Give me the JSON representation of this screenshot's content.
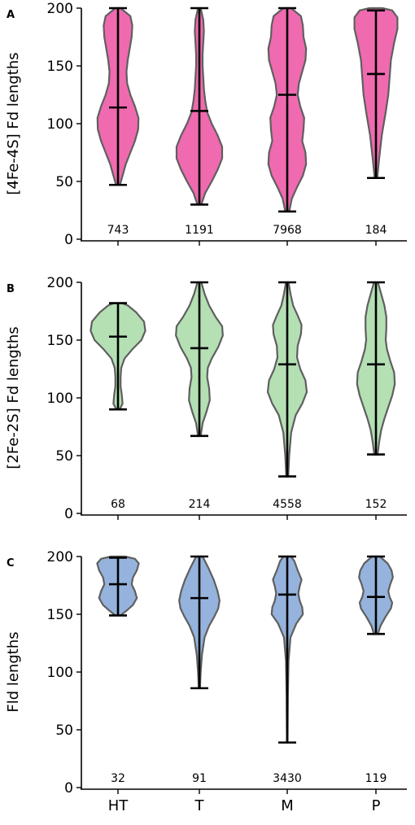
{
  "chart_data": [
    {
      "type": "violin",
      "panel_label": "A",
      "ylabel": "[4Fe-4S] Fd lengths",
      "ylim": [
        0,
        200
      ],
      "yticks": [
        0,
        50,
        100,
        150,
        200
      ],
      "categories": [
        "HT",
        "T",
        "M",
        "P"
      ],
      "color": "#f06ab0",
      "violins": [
        {
          "category": "HT",
          "min": 47,
          "median": 114,
          "max": 200,
          "count": "743",
          "profile": [
            [
              47,
              0.06
            ],
            [
              55,
              0.14
            ],
            [
              65,
              0.24
            ],
            [
              75,
              0.38
            ],
            [
              85,
              0.52
            ],
            [
              95,
              0.62
            ],
            [
              105,
              0.63
            ],
            [
              115,
              0.52
            ],
            [
              125,
              0.38
            ],
            [
              135,
              0.28
            ],
            [
              145,
              0.26
            ],
            [
              155,
              0.3
            ],
            [
              165,
              0.36
            ],
            [
              175,
              0.42
            ],
            [
              185,
              0.44
            ],
            [
              193,
              0.38
            ],
            [
              200,
              0.08
            ]
          ]
        },
        {
          "category": "T",
          "min": 30,
          "median": 111,
          "max": 200,
          "count": "1191",
          "profile": [
            [
              30,
              0.06
            ],
            [
              40,
              0.18
            ],
            [
              50,
              0.38
            ],
            [
              60,
              0.56
            ],
            [
              70,
              0.7
            ],
            [
              80,
              0.7
            ],
            [
              90,
              0.56
            ],
            [
              100,
              0.38
            ],
            [
              110,
              0.24
            ],
            [
              120,
              0.18
            ],
            [
              130,
              0.14
            ],
            [
              140,
              0.12
            ],
            [
              150,
              0.1
            ],
            [
              160,
              0.1
            ],
            [
              170,
              0.12
            ],
            [
              180,
              0.14
            ],
            [
              190,
              0.12
            ],
            [
              200,
              0.04
            ]
          ]
        },
        {
          "category": "M",
          "min": 24,
          "median": 125,
          "max": 200,
          "count": "7968",
          "profile": [
            [
              24,
              0.06
            ],
            [
              35,
              0.14
            ],
            [
              45,
              0.3
            ],
            [
              55,
              0.48
            ],
            [
              65,
              0.58
            ],
            [
              75,
              0.56
            ],
            [
              85,
              0.46
            ],
            [
              95,
              0.5
            ],
            [
              105,
              0.52
            ],
            [
              115,
              0.4
            ],
            [
              125,
              0.32
            ],
            [
              135,
              0.36
            ],
            [
              145,
              0.46
            ],
            [
              155,
              0.56
            ],
            [
              165,
              0.58
            ],
            [
              175,
              0.5
            ],
            [
              185,
              0.48
            ],
            [
              193,
              0.42
            ],
            [
              200,
              0.12
            ]
          ]
        },
        {
          "category": "P",
          "min": 53,
          "median": 143,
          "max": 198,
          "count": "184",
          "profile": [
            [
              53,
              0.04
            ],
            [
              70,
              0.1
            ],
            [
              90,
              0.18
            ],
            [
              110,
              0.3
            ],
            [
              125,
              0.38
            ],
            [
              140,
              0.42
            ],
            [
              155,
              0.46
            ],
            [
              170,
              0.56
            ],
            [
              182,
              0.66
            ],
            [
              192,
              0.66
            ],
            [
              198,
              0.5
            ],
            [
              200,
              0.2
            ]
          ]
        }
      ]
    },
    {
      "type": "violin",
      "panel_label": "B",
      "ylabel": "[2Fe-2S] Fd lengths",
      "ylim": [
        0,
        200
      ],
      "yticks": [
        0,
        50,
        100,
        150,
        200
      ],
      "categories": [
        "HT",
        "T",
        "M",
        "P"
      ],
      "color": "#b4e0b4",
      "violins": [
        {
          "category": "HT",
          "min": 90,
          "median": 153,
          "max": 182,
          "count": "68",
          "profile": [
            [
              90,
              0.05
            ],
            [
              95,
              0.14
            ],
            [
              102,
              0.12
            ],
            [
              110,
              0.08
            ],
            [
              118,
              0.08
            ],
            [
              126,
              0.1
            ],
            [
              134,
              0.2
            ],
            [
              142,
              0.44
            ],
            [
              150,
              0.72
            ],
            [
              158,
              0.84
            ],
            [
              166,
              0.8
            ],
            [
              174,
              0.56
            ],
            [
              180,
              0.3
            ],
            [
              182,
              0.12
            ]
          ]
        },
        {
          "category": "T",
          "min": 67,
          "median": 143,
          "max": 200,
          "count": "214",
          "profile": [
            [
              67,
              0.04
            ],
            [
              78,
              0.1
            ],
            [
              88,
              0.22
            ],
            [
              98,
              0.32
            ],
            [
              108,
              0.3
            ],
            [
              118,
              0.24
            ],
            [
              126,
              0.26
            ],
            [
              134,
              0.38
            ],
            [
              144,
              0.58
            ],
            [
              154,
              0.72
            ],
            [
              162,
              0.7
            ],
            [
              170,
              0.5
            ],
            [
              180,
              0.3
            ],
            [
              190,
              0.16
            ],
            [
              200,
              0.06
            ]
          ]
        },
        {
          "category": "M",
          "min": 32,
          "median": 129,
          "max": 200,
          "count": "4558",
          "profile": [
            [
              32,
              0.03
            ],
            [
              50,
              0.06
            ],
            [
              70,
              0.12
            ],
            [
              85,
              0.26
            ],
            [
              95,
              0.46
            ],
            [
              105,
              0.6
            ],
            [
              115,
              0.56
            ],
            [
              125,
              0.4
            ],
            [
              135,
              0.3
            ],
            [
              145,
              0.32
            ],
            [
              155,
              0.42
            ],
            [
              163,
              0.44
            ],
            [
              170,
              0.34
            ],
            [
              180,
              0.18
            ],
            [
              190,
              0.1
            ],
            [
              200,
              0.04
            ]
          ]
        },
        {
          "category": "P",
          "min": 51,
          "median": 129,
          "max": 200,
          "count": "152",
          "profile": [
            [
              51,
              0.05
            ],
            [
              62,
              0.1
            ],
            [
              72,
              0.16
            ],
            [
              82,
              0.26
            ],
            [
              92,
              0.38
            ],
            [
              102,
              0.5
            ],
            [
              112,
              0.58
            ],
            [
              122,
              0.56
            ],
            [
              132,
              0.44
            ],
            [
              142,
              0.34
            ],
            [
              150,
              0.3
            ],
            [
              160,
              0.32
            ],
            [
              170,
              0.32
            ],
            [
              180,
              0.26
            ],
            [
              190,
              0.16
            ],
            [
              200,
              0.06
            ]
          ]
        }
      ]
    },
    {
      "type": "violin",
      "panel_label": "C",
      "ylabel": "Fld lengths",
      "ylim": [
        0,
        200
      ],
      "yticks": [
        0,
        50,
        100,
        150,
        200
      ],
      "categories": [
        "HT",
        "T",
        "M",
        "P"
      ],
      "xticklabels": [
        "HT",
        "T",
        "M",
        "P"
      ],
      "color": "#95b3dc",
      "violins": [
        {
          "category": "HT",
          "min": 149,
          "median": 176,
          "max": 199,
          "count": "32",
          "profile": [
            [
              149,
              0.08
            ],
            [
              153,
              0.26
            ],
            [
              158,
              0.46
            ],
            [
              164,
              0.58
            ],
            [
              170,
              0.52
            ],
            [
              176,
              0.42
            ],
            [
              182,
              0.46
            ],
            [
              188,
              0.58
            ],
            [
              194,
              0.64
            ],
            [
              198,
              0.52
            ],
            [
              200,
              0.22
            ]
          ]
        },
        {
          "category": "T",
          "min": 86,
          "median": 164,
          "max": 200,
          "count": "91",
          "profile": [
            [
              86,
              0.02
            ],
            [
              100,
              0.04
            ],
            [
              115,
              0.08
            ],
            [
              130,
              0.16
            ],
            [
              140,
              0.3
            ],
            [
              148,
              0.46
            ],
            [
              155,
              0.58
            ],
            [
              162,
              0.62
            ],
            [
              170,
              0.56
            ],
            [
              180,
              0.44
            ],
            [
              190,
              0.28
            ],
            [
              200,
              0.1
            ]
          ]
        },
        {
          "category": "M",
          "min": 39,
          "median": 167,
          "max": 200,
          "count": "3430",
          "profile": [
            [
              39,
              0.01
            ],
            [
              80,
              0.02
            ],
            [
              110,
              0.04
            ],
            [
              130,
              0.1
            ],
            [
              142,
              0.28
            ],
            [
              150,
              0.48
            ],
            [
              156,
              0.46
            ],
            [
              162,
              0.38
            ],
            [
              168,
              0.34
            ],
            [
              174,
              0.38
            ],
            [
              180,
              0.44
            ],
            [
              188,
              0.32
            ],
            [
              196,
              0.22
            ],
            [
              200,
              0.12
            ]
          ]
        },
        {
          "category": "P",
          "min": 133,
          "median": 165,
          "max": 200,
          "count": "119",
          "profile": [
            [
              133,
              0.06
            ],
            [
              140,
              0.14
            ],
            [
              148,
              0.3
            ],
            [
              155,
              0.46
            ],
            [
              160,
              0.5
            ],
            [
              165,
              0.42
            ],
            [
              170,
              0.38
            ],
            [
              176,
              0.44
            ],
            [
              182,
              0.52
            ],
            [
              188,
              0.48
            ],
            [
              194,
              0.36
            ],
            [
              200,
              0.12
            ]
          ]
        }
      ]
    }
  ]
}
